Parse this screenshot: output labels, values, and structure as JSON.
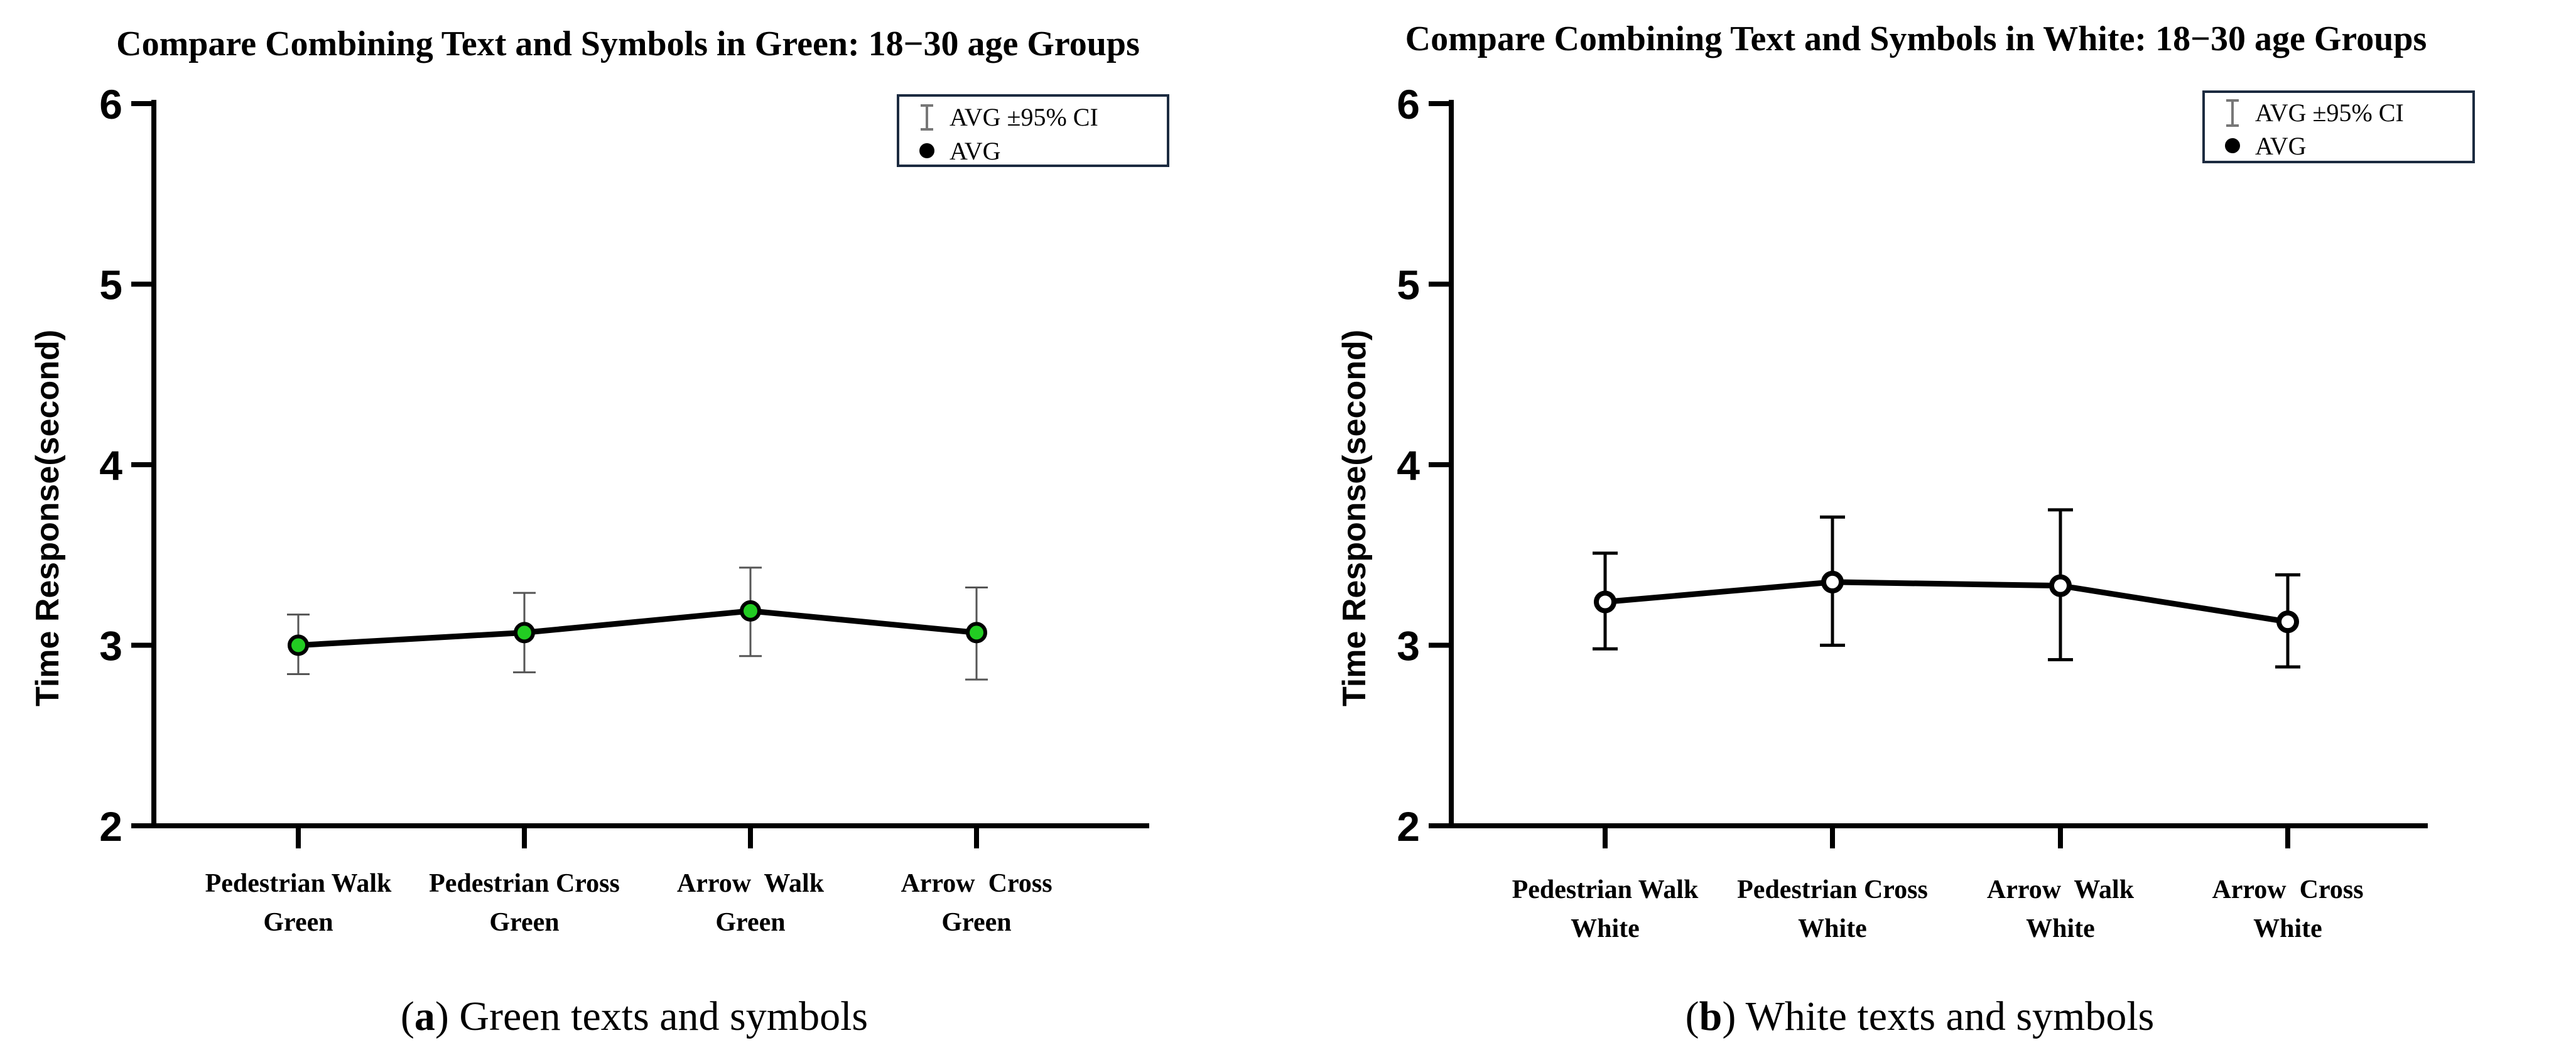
{
  "chart_data": [
    {
      "type": "line",
      "title": "Compare Combining Text and Symbols in Green: 18−30 age Groups",
      "ylabel": "Time Response(second)",
      "ylim": [
        2,
        6
      ],
      "yticks": [
        "2",
        "3",
        "4",
        "5",
        "6"
      ],
      "categories": [
        "Pedestrian Walk\nGreen",
        "Pedestrian Cross\nGreen",
        "Arrow  Walk\nGreen",
        "Arrow  Cross\nGreen"
      ],
      "series": [
        {
          "values": [
            3.0,
            3.07,
            3.19,
            3.07
          ],
          "ci_low": [
            2.84,
            2.85,
            2.94,
            2.81
          ],
          "ci_high": [
            3.17,
            3.29,
            3.43,
            3.32
          ],
          "marker_fill": "#22cc22"
        }
      ],
      "legend": {
        "position": "top-right",
        "entries": [
          "AVG ±95% CI",
          "AVG"
        ]
      },
      "caption_letter": "a",
      "caption_text": " Green texts and symbols"
    },
    {
      "type": "line",
      "title": "Compare Combining Text and Symbols in White: 18−30 age Groups",
      "ylabel": "Time Response(second)",
      "ylim": [
        2,
        6
      ],
      "yticks": [
        "2",
        "3",
        "4",
        "5",
        "6"
      ],
      "categories": [
        "Pedestrian Walk\nWhite",
        "Pedestrian Cross\nWhite",
        "Arrow  Walk\nWhite",
        "Arrow  Cross\nWhite"
      ],
      "series": [
        {
          "values": [
            3.24,
            3.35,
            3.33,
            3.13
          ],
          "ci_low": [
            2.98,
            3.0,
            2.92,
            2.88
          ],
          "ci_high": [
            3.51,
            3.71,
            3.75,
            3.39
          ],
          "marker_fill": "#ffffff"
        }
      ],
      "legend": {
        "position": "top-right",
        "entries": [
          "AVG ±95% CI",
          "AVG"
        ]
      },
      "caption_letter": "b",
      "caption_text": " White texts and symbols"
    }
  ]
}
